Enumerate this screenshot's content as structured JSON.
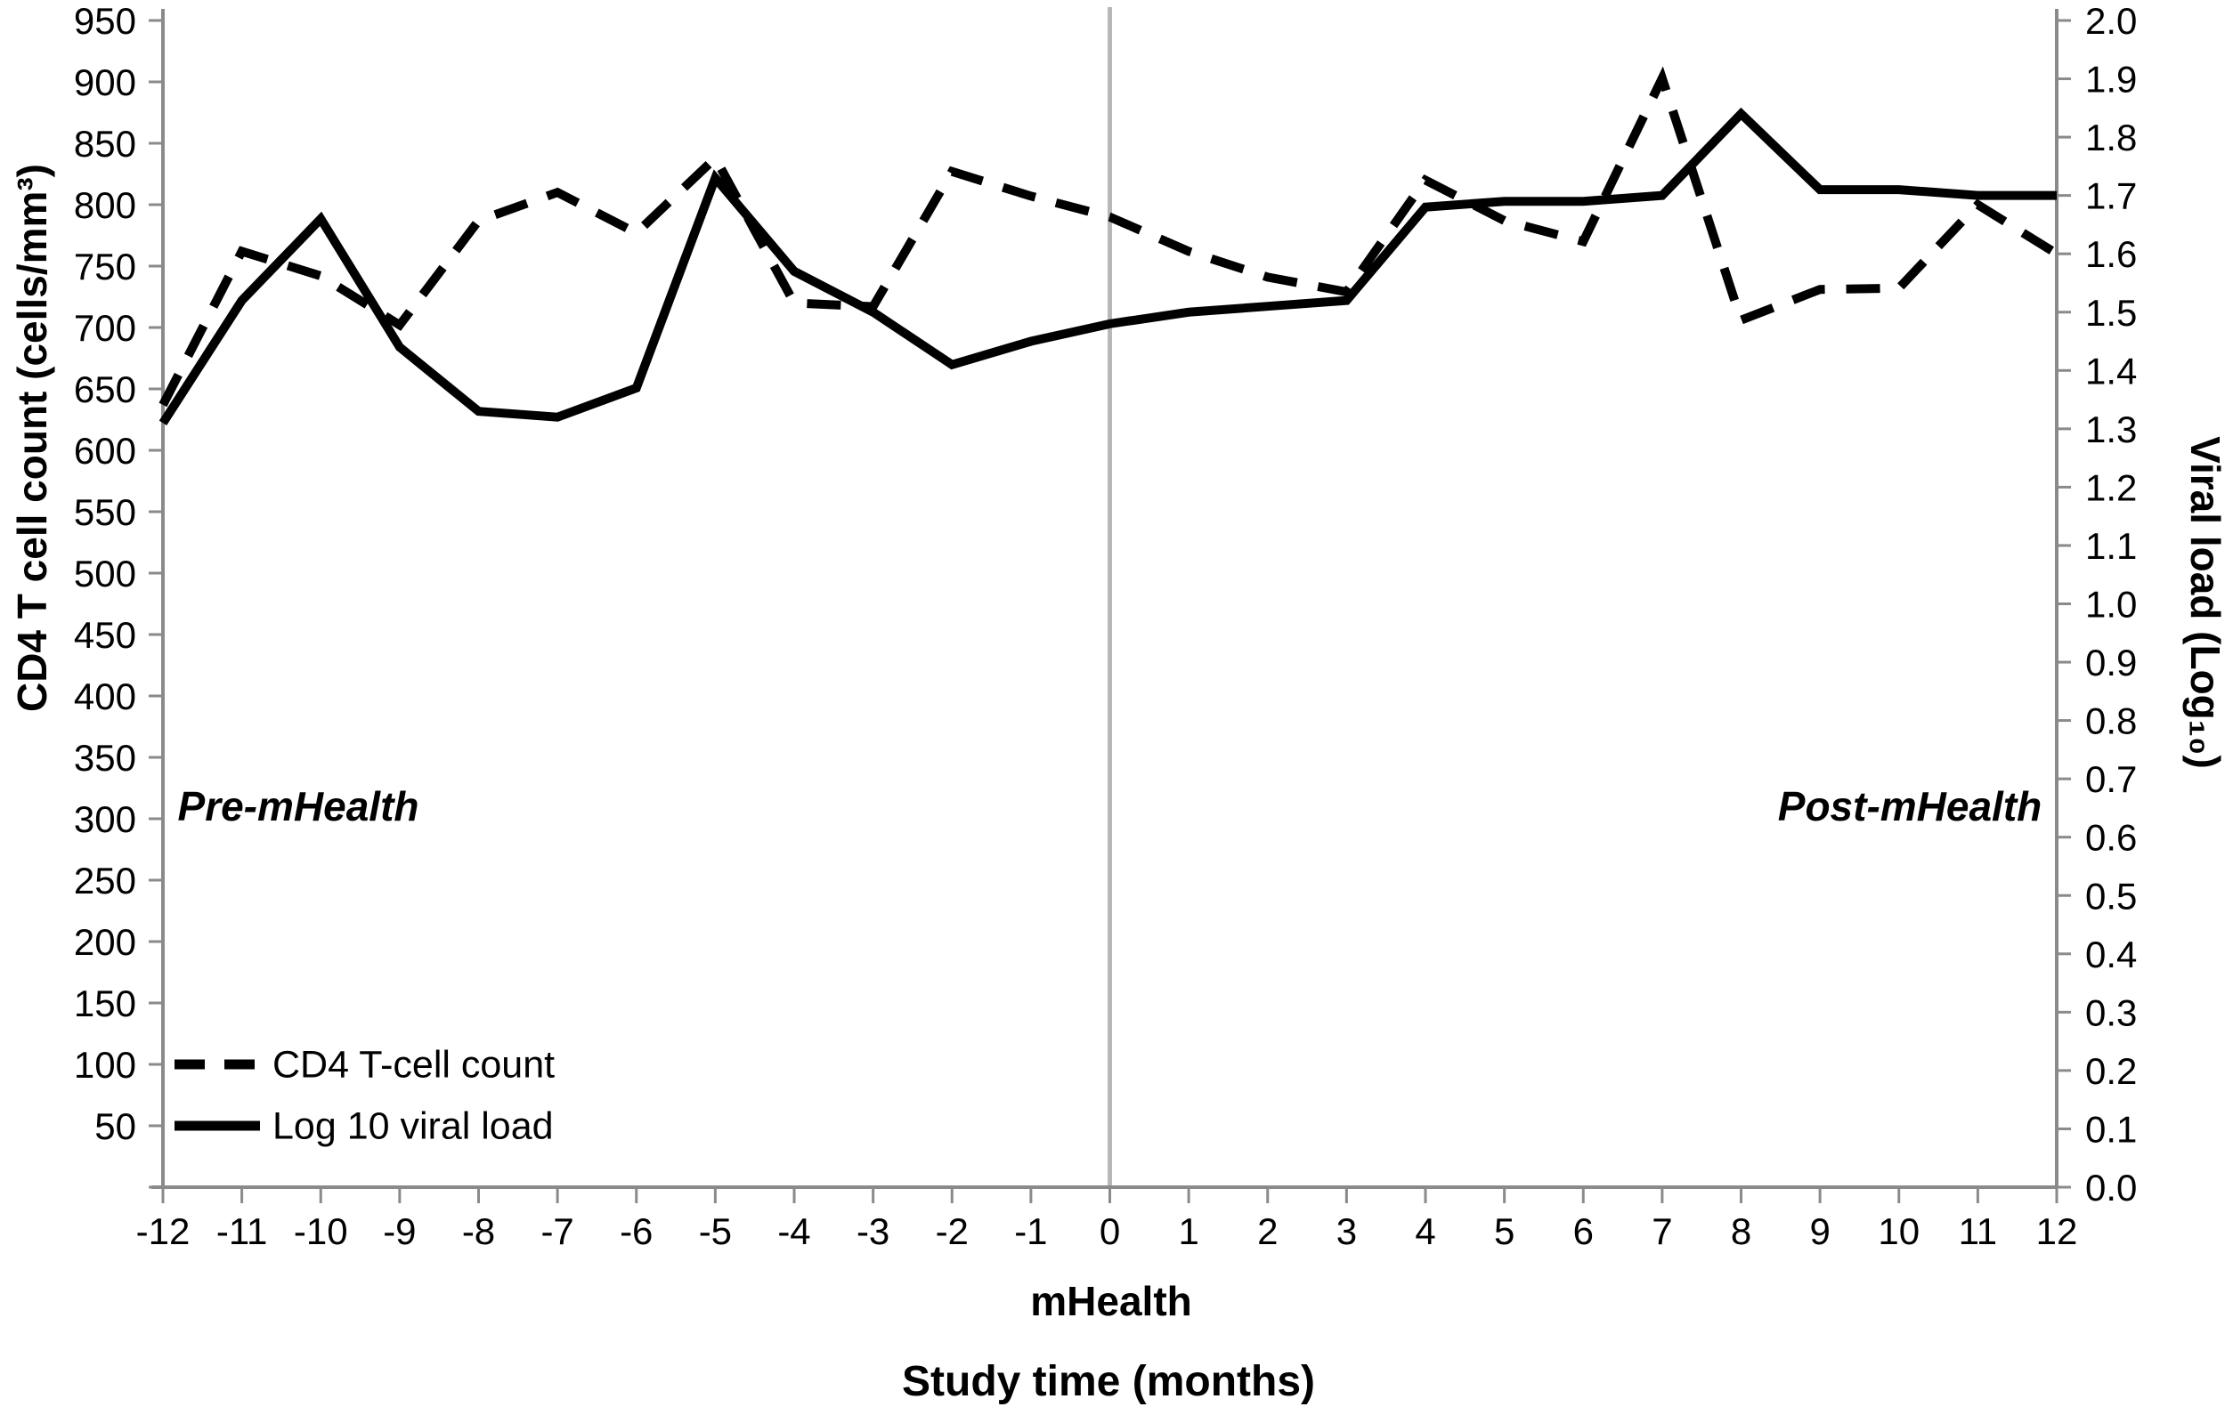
{
  "chart_data": {
    "type": "line",
    "title": "",
    "xlabel": "Study time (months)",
    "x_marker_label": "mHealth",
    "x_range": [
      -12,
      12
    ],
    "x_ticks": [
      -12,
      -11,
      -10,
      -9,
      -8,
      -7,
      -6,
      -5,
      -4,
      -3,
      -2,
      -1,
      0,
      1,
      2,
      3,
      4,
      5,
      6,
      7,
      8,
      9,
      10,
      11,
      12
    ],
    "left_axis": {
      "label": "CD4 T cell count (cells/mm³)",
      "range": [
        0,
        950
      ],
      "ticks": [
        950,
        900,
        850,
        800,
        750,
        700,
        650,
        600,
        550,
        500,
        450,
        400,
        350,
        300,
        250,
        200,
        150,
        100,
        50
      ]
    },
    "right_axis": {
      "label": "Viral load (Log₁₀)",
      "range": [
        0.0,
        2.0
      ],
      "ticks": [
        "2.0",
        "1.9",
        "1.8",
        "1.7",
        "1.6",
        "1.5",
        "1.4",
        "1.3",
        "1.2",
        "1.1",
        "1.0",
        "0.9",
        "0.8",
        "0.7",
        "0.6",
        "0.5",
        "0.4",
        "0.3",
        "0.2",
        "0.1",
        "0.0"
      ]
    },
    "reference_line_x": 0,
    "grid": "off",
    "legend_position": "bottom-left",
    "annotations": [
      {
        "text": "Pre-mHealth"
      },
      {
        "text": "Post-mHealth"
      }
    ],
    "series": [
      {
        "name": "CD4 T-cell count",
        "axis": "left",
        "line_style": "dashed",
        "color": "#000000",
        "x": [
          -12,
          -11,
          -10,
          -9,
          -8,
          -7,
          -6,
          -5,
          -4,
          -3,
          -2,
          -1,
          0,
          1,
          2,
          3,
          4,
          5,
          6,
          7,
          8,
          9,
          10,
          11,
          12
        ],
        "values": [
          637,
          762,
          742,
          702,
          787,
          810,
          777,
          838,
          720,
          717,
          827,
          807,
          790,
          762,
          741,
          729,
          820,
          787,
          770,
          903,
          706,
          731,
          732,
          800,
          760
        ]
      },
      {
        "name": "Log 10 viral load",
        "axis": "right",
        "line_style": "solid",
        "color": "#000000",
        "x": [
          -12,
          -11,
          -10,
          -9,
          -8,
          -7,
          -6,
          -5,
          -4,
          -3,
          -2,
          -1,
          0,
          1,
          2,
          3,
          4,
          5,
          6,
          7,
          8,
          9,
          10,
          11,
          12
        ],
        "values": [
          1.31,
          1.52,
          1.66,
          1.44,
          1.33,
          1.32,
          1.37,
          1.73,
          1.57,
          1.5,
          1.41,
          1.45,
          1.48,
          1.5,
          1.51,
          1.52,
          1.68,
          1.69,
          1.69,
          1.7,
          1.84,
          1.71,
          1.71,
          1.7,
          1.7
        ]
      }
    ]
  },
  "colors": {
    "line": "#000000",
    "axis": "#8a8a8a",
    "reference_line": "#b8b8b8",
    "text": "#000000",
    "background": "#ffffff"
  }
}
